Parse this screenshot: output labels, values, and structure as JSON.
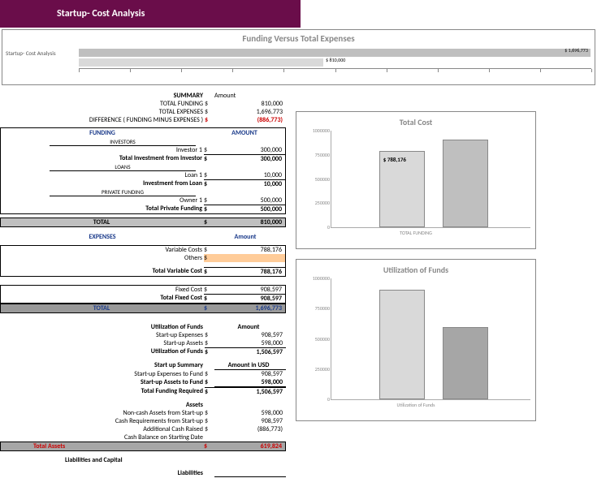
{
  "title": "Startup- Cost Analysis",
  "fvte": {
    "title": "Funding Versus Total Expenses",
    "row_label": "Startup- Cost Analysis",
    "bar1": {
      "value": "$ 810,000",
      "width_pct": 47.7,
      "color": "#d9d9d9"
    },
    "bar2": {
      "value": "$ 1,696,773",
      "width_pct": 99.8,
      "color": "#bfbfbf"
    },
    "axis_max": 1700000
  },
  "summary": {
    "heading": "SUMMARY",
    "amount_heading": "Amount",
    "rows": [
      {
        "label": "TOTAL FUNDING",
        "cur": "$",
        "val": "810,000"
      },
      {
        "label": "TOTAL EXPENSES",
        "cur": "$",
        "val": "1,696,773"
      },
      {
        "label": "DIFFERENCE  ( FUNDING MINUS EXPENSES )",
        "cur": "$",
        "val": "(886,773)",
        "red": true
      }
    ]
  },
  "funding": {
    "header1": "FUNDING",
    "header2": "AMOUNT",
    "sections": [
      {
        "title": "INVESTORS",
        "rows": [
          {
            "label": "Investor 1",
            "cur": "$",
            "val": "300,000"
          }
        ],
        "total": {
          "label": "Total Investment from Investor",
          "cur": "$",
          "val": "300,000"
        }
      },
      {
        "title": "LOANS",
        "rows": [
          {
            "label": "Loan 1",
            "cur": "$",
            "val": "10,000"
          }
        ],
        "total": {
          "label": "Investment from Loan",
          "cur": "$",
          "val": "10,000"
        }
      },
      {
        "title": "PRIVATE FUNDING",
        "rows": [
          {
            "label": "Owner 1",
            "cur": "$",
            "val": "500,000"
          }
        ],
        "total": {
          "label": "Total Private Funding",
          "cur": "$",
          "val": "500,000"
        }
      }
    ],
    "grand": {
      "label": "TOTAL",
      "cur": "$",
      "val": "810,000"
    }
  },
  "expenses": {
    "header1": "EXPENSES",
    "header2": "Amount",
    "variable": {
      "rows": [
        {
          "label": "Variable Costs",
          "cur": "$",
          "val": "788,176"
        },
        {
          "label": "Others",
          "cur": "$",
          "val": "",
          "orange": true
        }
      ],
      "total": {
        "label": "Total Variable Cost",
        "cur": "$",
        "val": "788,176"
      }
    },
    "fixed": {
      "rows": [
        {
          "label": "Fixed Cost",
          "cur": "$",
          "val": "908,597"
        }
      ],
      "total": {
        "label": "Total Fixed Cost",
        "cur": "$",
        "val": "908,597"
      }
    },
    "grand": {
      "label": "TOTAL",
      "cur": "$",
      "val": "1,696,773"
    }
  },
  "util": {
    "heading": "Utilization of Funds",
    "amount_heading": "Amount",
    "rows": [
      {
        "label": "Start-up Expenses",
        "cur": "$",
        "val": "908,597"
      },
      {
        "label": "Start-up Assets",
        "cur": "$",
        "val": "598,000"
      }
    ],
    "total": {
      "label": "Utilization of Funds",
      "cur": "$",
      "val": "1,506,597"
    }
  },
  "startup_summary": {
    "heading": "Start up Summary",
    "amount_heading": "Amount in USD",
    "rows": [
      {
        "label": "Start-up Expenses to Fund",
        "cur": "$",
        "val": "908,597"
      },
      {
        "label": "Start-up Assets to Fund",
        "cur": "$",
        "val": "598,000"
      }
    ],
    "total": {
      "label": "Total Funding Required",
      "cur": "$",
      "val": "1,506,597"
    }
  },
  "assets": {
    "heading": "Assets",
    "rows": [
      {
        "label": "Non-cash Assets from Start-up",
        "cur": "$",
        "val": "598,000"
      },
      {
        "label": "Cash Requirements from Start-up",
        "cur": "$",
        "val": "908,597"
      },
      {
        "label": "Additional Cash Raised",
        "cur": "$",
        "val": "(886,773)"
      },
      {
        "label": "Cash Balance on Starting Date",
        "cur": "",
        "val": ""
      }
    ],
    "total": {
      "label": "Total Assets",
      "cur": "$",
      "val": "619,824"
    }
  },
  "liab": {
    "heading1": "Liabilities and Capital",
    "heading2": "Liabilities"
  },
  "chart_totalcost": {
    "title": "Total Cost",
    "ylim": 1000000,
    "yticks": [
      "0",
      "250000",
      "500000",
      "750000",
      "1000000"
    ],
    "bars": [
      {
        "value": 788176,
        "label": "$ 788,176",
        "color": "#d9d9d9",
        "x_pct": 24
      },
      {
        "value": 908597,
        "label": "",
        "color": "#bfbfbf",
        "x_pct": 56
      }
    ],
    "xlabel": "TOTAL FUNDING"
  },
  "chart_util": {
    "title": "Utilization of Funds",
    "ylim": 1000000,
    "yticks": [
      "0",
      "250000",
      "500000",
      "750000",
      "1000000"
    ],
    "bars": [
      {
        "value": 908597,
        "color": "#d9d9d9",
        "x_pct": 24
      },
      {
        "value": 598000,
        "color": "#a6a6a6",
        "x_pct": 56
      }
    ],
    "xlabel": "Utilization of Funds"
  }
}
